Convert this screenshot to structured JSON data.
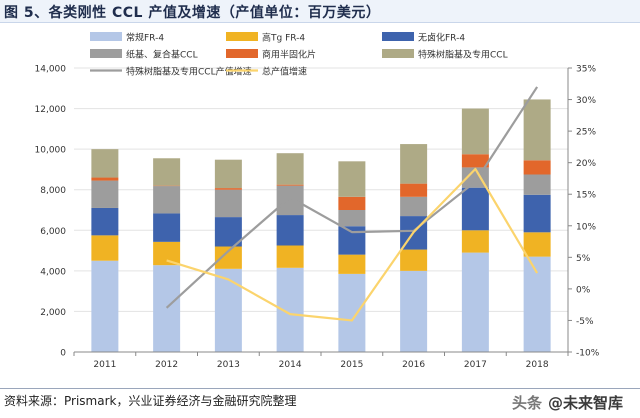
{
  "title": "图 5、各类刚性 CCL 产值及增速（产值单位：百万美元）",
  "source": "资料来源：Prismark，兴业证券经济与金融研究院整理",
  "watermark": {
    "prefix": "头条",
    "text": "@未来智库"
  },
  "chart_data": {
    "type": "bar",
    "stacked": true,
    "categories": [
      "2011",
      "2012",
      "2013",
      "2014",
      "2015",
      "2016",
      "2017",
      "2018"
    ],
    "y_left_lim": [
      0,
      14000
    ],
    "y_left_ticks": [
      "0",
      "2,000",
      "4,000",
      "6,000",
      "8,000",
      "10,000",
      "12,000",
      "14,000"
    ],
    "y_right_lim": [
      -10,
      35
    ],
    "y_right_ticks": [
      "-10%",
      "-5%",
      "0%",
      "5%",
      "10%",
      "15%",
      "20%",
      "25%",
      "30%",
      "35%"
    ],
    "legend_position": "top",
    "series": [
      {
        "name": "常规FR-4",
        "color": "#b4c7e7",
        "values": [
          4500,
          4280,
          4100,
          4150,
          3850,
          4000,
          4900,
          4700
        ]
      },
      {
        "name": "高Tg FR-4",
        "color": "#f0b323",
        "values": [
          1250,
          1150,
          1100,
          1100,
          950,
          1050,
          1100,
          1200
        ]
      },
      {
        "name": "无卤化FR-4",
        "color": "#3e63ad",
        "values": [
          1350,
          1400,
          1450,
          1500,
          1400,
          1650,
          2100,
          1850
        ]
      },
      {
        "name": "纸基、复合基CCL",
        "color": "#9d9d9d",
        "values": [
          1350,
          1350,
          1350,
          1450,
          800,
          950,
          1000,
          1000
        ]
      },
      {
        "name": "商用半固化片",
        "color": "#e2672b",
        "values": [
          150,
          20,
          80,
          50,
          650,
          650,
          650,
          700
        ]
      },
      {
        "name": "特殊树脂基及专用CCL",
        "color": "#aeaa86",
        "values": [
          1400,
          1350,
          1400,
          1550,
          1750,
          1950,
          2250,
          3000
        ]
      }
    ],
    "lines": [
      {
        "name": "特殊树脂基及专用CCL产值增速",
        "color": "#9d9d9d",
        "axis": "right",
        "values": [
          null,
          -3,
          6,
          14.5,
          9,
          9.2,
          17,
          32
        ]
      },
      {
        "name": "总产值增速",
        "color": "#fbd46d",
        "axis": "right",
        "values": [
          null,
          4.5,
          1.5,
          -4,
          -5,
          9,
          19,
          2.5
        ]
      }
    ]
  }
}
